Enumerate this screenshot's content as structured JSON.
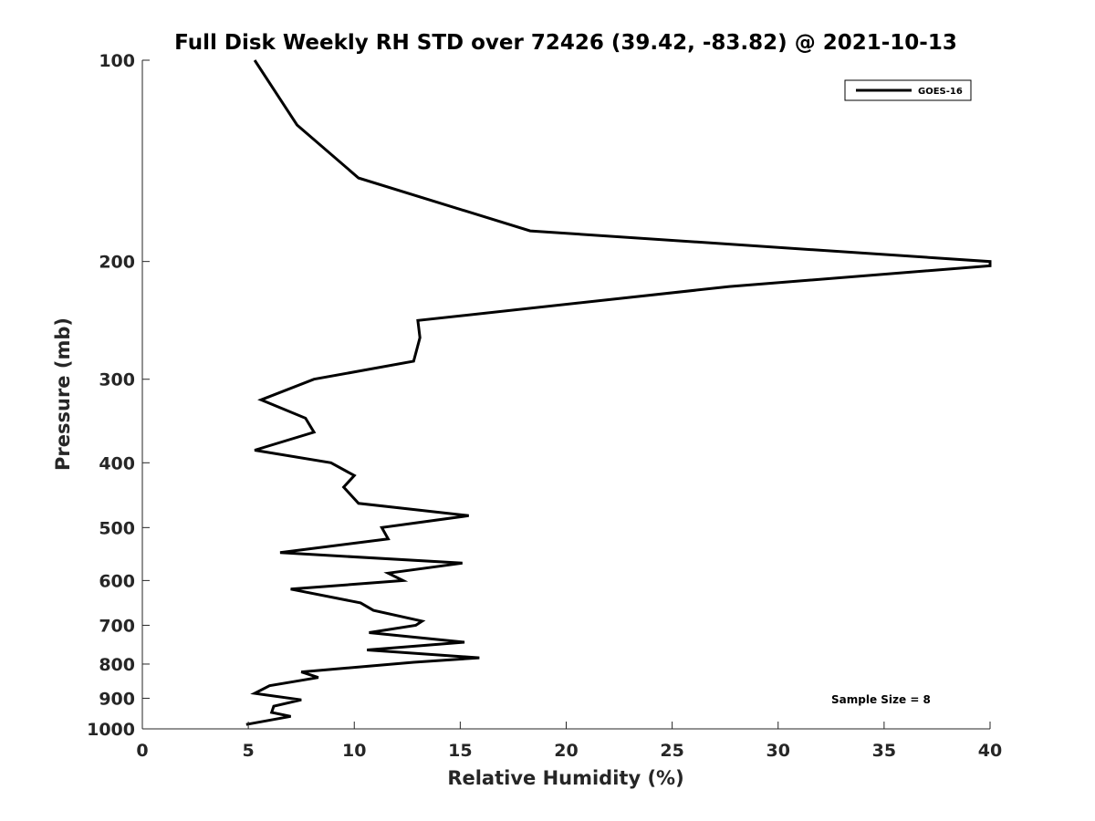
{
  "chart_data": {
    "type": "line",
    "title": "Full Disk Weekly RH STD over 72426 (39.42, -83.82) @ 2021-10-13",
    "xlabel": "Relative Humidity (%)",
    "ylabel": "Pressure (mb)",
    "xlim": [
      0,
      40
    ],
    "ylim": [
      100,
      1000
    ],
    "y_scale": "log",
    "y_reversed": true,
    "x_ticks": [
      0,
      5,
      10,
      15,
      20,
      25,
      30,
      35,
      40
    ],
    "y_ticks": [
      100,
      200,
      300,
      400,
      500,
      600,
      700,
      800,
      900,
      1000
    ],
    "grid": false,
    "legend_position": "top-right",
    "series": [
      {
        "name": "GOES-16",
        "color": "#000000",
        "points": [
          {
            "x": 5.3,
            "p": 100
          },
          {
            "x": 7.3,
            "p": 125
          },
          {
            "x": 10.2,
            "p": 150
          },
          {
            "x": 18.3,
            "p": 180
          },
          {
            "x": 40.0,
            "p": 200
          },
          {
            "x": 40.0,
            "p": 203
          },
          {
            "x": 27.7,
            "p": 218
          },
          {
            "x": 13.0,
            "p": 245
          },
          {
            "x": 13.1,
            "p": 260
          },
          {
            "x": 12.8,
            "p": 282
          },
          {
            "x": 8.1,
            "p": 300
          },
          {
            "x": 5.6,
            "p": 322
          },
          {
            "x": 7.7,
            "p": 343
          },
          {
            "x": 8.1,
            "p": 360
          },
          {
            "x": 5.3,
            "p": 383
          },
          {
            "x": 8.9,
            "p": 400
          },
          {
            "x": 10.0,
            "p": 418
          },
          {
            "x": 9.5,
            "p": 435
          },
          {
            "x": 10.2,
            "p": 460
          },
          {
            "x": 15.4,
            "p": 480
          },
          {
            "x": 11.3,
            "p": 500
          },
          {
            "x": 11.6,
            "p": 520
          },
          {
            "x": 6.5,
            "p": 545
          },
          {
            "x": 15.1,
            "p": 565
          },
          {
            "x": 11.6,
            "p": 585
          },
          {
            "x": 12.3,
            "p": 600
          },
          {
            "x": 7.0,
            "p": 618
          },
          {
            "x": 10.3,
            "p": 648
          },
          {
            "x": 10.9,
            "p": 665
          },
          {
            "x": 13.2,
            "p": 690
          },
          {
            "x": 12.9,
            "p": 700
          },
          {
            "x": 10.7,
            "p": 718
          },
          {
            "x": 15.2,
            "p": 742
          },
          {
            "x": 10.6,
            "p": 762
          },
          {
            "x": 15.9,
            "p": 783
          },
          {
            "x": 12.8,
            "p": 795
          },
          {
            "x": 7.5,
            "p": 822
          },
          {
            "x": 8.3,
            "p": 838
          },
          {
            "x": 6.0,
            "p": 862
          },
          {
            "x": 5.3,
            "p": 885
          },
          {
            "x": 7.5,
            "p": 905
          },
          {
            "x": 6.2,
            "p": 925
          },
          {
            "x": 6.1,
            "p": 945
          },
          {
            "x": 7.0,
            "p": 958
          },
          {
            "x": 4.9,
            "p": 985
          }
        ]
      }
    ],
    "annotation": "Sample Size = 8"
  }
}
